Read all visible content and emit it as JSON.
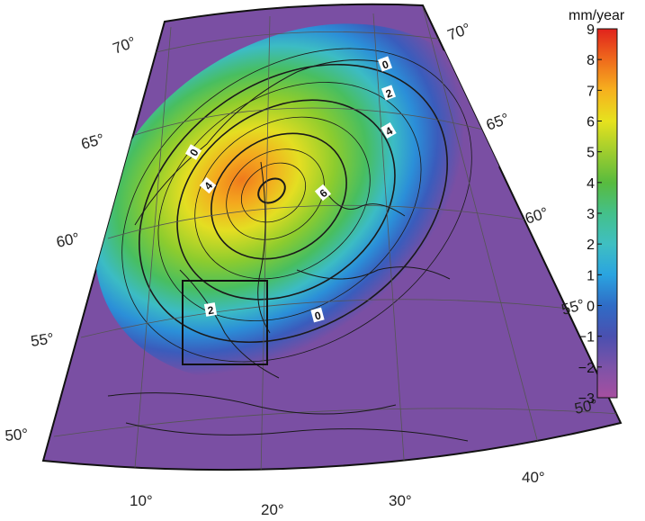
{
  "map": {
    "title": "",
    "latitude_labels_left": [
      "70°",
      "65°",
      "60°",
      "55°",
      "50°"
    ],
    "latitude_labels_right": [
      "70°",
      "65°",
      "60°",
      "55°",
      "50°"
    ],
    "longitude_labels": [
      "10°",
      "20°",
      "30°",
      "40°"
    ],
    "contour_labels": [
      "0",
      "2",
      "4",
      "0",
      "4",
      "6",
      "2",
      "0"
    ],
    "colors": {
      "background": "#7a4fa3",
      "ocean_purple": "#7a4fa3",
      "coast": "#1a1a1a"
    }
  },
  "colorbar": {
    "title": "mm/year",
    "ticks": [
      "9",
      "8",
      "7",
      "6",
      "5",
      "4",
      "3",
      "2",
      "1",
      "0",
      "−1",
      "−2",
      "−3"
    ],
    "min": -3,
    "max": 9,
    "colors": [
      "#a64fa0",
      "#7d53a8",
      "#4a50b0",
      "#2f6cc6",
      "#2aa4e0",
      "#3fbfc2",
      "#44c08a",
      "#58bb3e",
      "#9fcd2e",
      "#e6e21e",
      "#f6b11e",
      "#ef6a1c",
      "#e0221c"
    ]
  }
}
